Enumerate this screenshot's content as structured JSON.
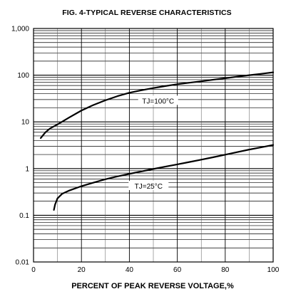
{
  "chart_data": {
    "type": "line",
    "title": "FIG. 4-TYPICAL REVERSE CHARACTERISTICS",
    "xlabel": "PERCENT OF PEAK REVERSE VOLTAGE,%",
    "ylabel": "",
    "y_scale": "log",
    "xlim": [
      0,
      100
    ],
    "ylim": [
      0.01,
      1000
    ],
    "x_ticks": [
      "0",
      "20",
      "40",
      "60",
      "80",
      "100"
    ],
    "y_ticks": [
      "1,000",
      "100",
      "10",
      "1",
      "0.1",
      "0.01"
    ],
    "grid": true,
    "series": [
      {
        "name": "TJ=100°C",
        "x": [
          3,
          5,
          7,
          10,
          15,
          20,
          25,
          30,
          35,
          40,
          45,
          50,
          55,
          60,
          65,
          70,
          75,
          80,
          85,
          90,
          95,
          100
        ],
        "y": [
          4.5,
          6.0,
          7.3,
          8.8,
          12.5,
          17.5,
          23,
          29,
          35.5,
          42,
          47.5,
          53,
          58.5,
          64,
          69,
          74,
          80,
          86,
          93,
          100,
          107,
          115
        ]
      },
      {
        "name": "TJ=25°C",
        "x": [
          8.5,
          9,
          10,
          12,
          15,
          20,
          25,
          30,
          35,
          40,
          45,
          50,
          55,
          60,
          65,
          70,
          75,
          80,
          85,
          90,
          95,
          100
        ],
        "y": [
          0.13,
          0.17,
          0.23,
          0.29,
          0.34,
          0.42,
          0.5,
          0.59,
          0.68,
          0.77,
          0.87,
          0.98,
          1.1,
          1.23,
          1.38,
          1.55,
          1.75,
          1.98,
          2.25,
          2.55,
          2.85,
          3.2
        ]
      }
    ]
  }
}
